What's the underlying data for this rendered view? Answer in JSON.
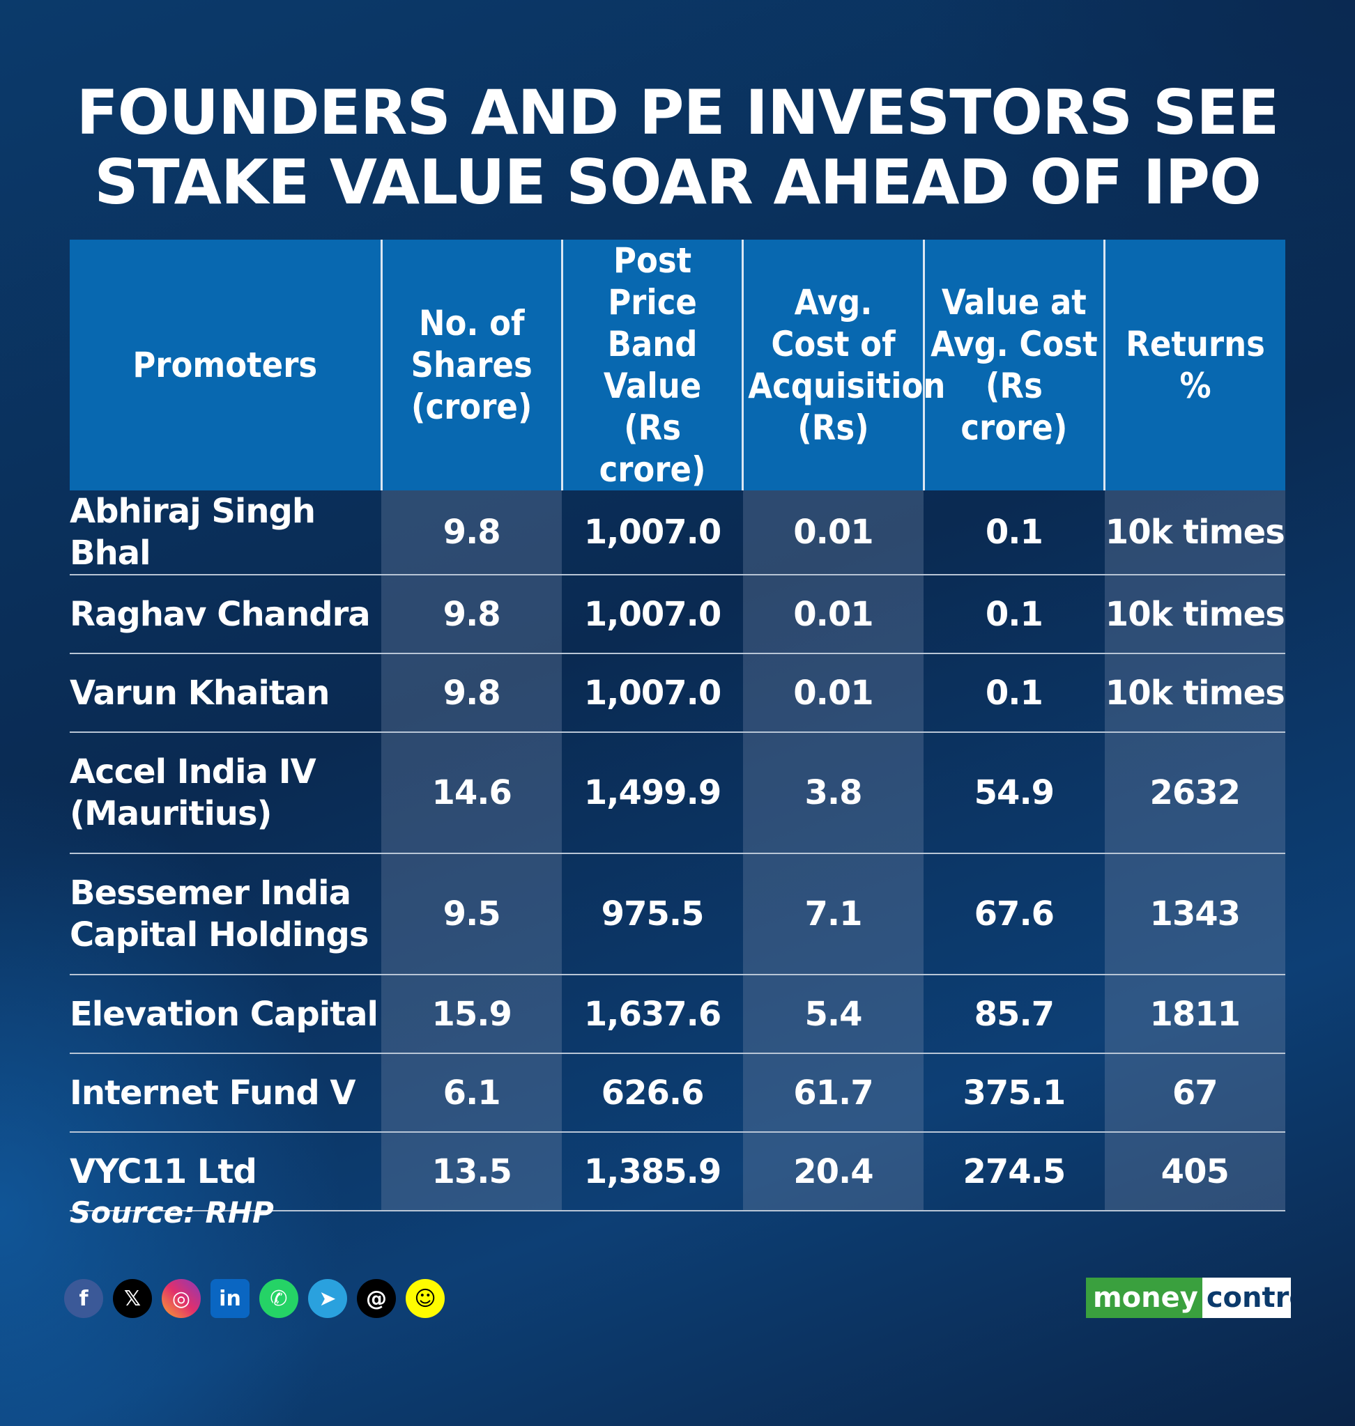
{
  "chart_data": {
    "type": "table",
    "title_lines": [
      "FOUNDERS AND PE INVESTORS SEE",
      "STAKE VALUE SOAR AHEAD OF IPO"
    ],
    "columns": [
      {
        "lines": [
          "Promoters"
        ]
      },
      {
        "lines": [
          "No. of",
          "Shares",
          "(crore)"
        ]
      },
      {
        "lines": [
          "Post",
          "Price Band",
          "Value",
          "(Rs crore)"
        ]
      },
      {
        "lines": [
          "Avg.",
          "Cost of",
          "Acquisition",
          "(Rs)"
        ]
      },
      {
        "lines": [
          "Value at",
          "Avg. Cost",
          "(Rs crore)"
        ]
      },
      {
        "lines": [
          "Returns %"
        ]
      }
    ],
    "rows": [
      {
        "name_lines": [
          "Abhiraj Singh Bhal"
        ],
        "values": [
          "9.8",
          "1,007.0",
          "0.01",
          "0.1",
          "10k times"
        ]
      },
      {
        "name_lines": [
          "Raghav Chandra"
        ],
        "values": [
          "9.8",
          "1,007.0",
          "0.01",
          "0.1",
          "10k times"
        ]
      },
      {
        "name_lines": [
          "Varun Khaitan"
        ],
        "values": [
          "9.8",
          "1,007.0",
          "0.01",
          "0.1",
          "10k times"
        ]
      },
      {
        "name_lines": [
          "Accel India IV",
          "(Mauritius)"
        ],
        "values": [
          "14.6",
          "1,499.9",
          "3.8",
          "54.9",
          "2632"
        ]
      },
      {
        "name_lines": [
          "Bessemer India",
          "Capital Holdings"
        ],
        "values": [
          "9.5",
          "975.5",
          "7.1",
          "67.6",
          "1343"
        ]
      },
      {
        "name_lines": [
          "Elevation Capital"
        ],
        "values": [
          "15.9",
          "1,637.6",
          "5.4",
          "85.7",
          "1811"
        ]
      },
      {
        "name_lines": [
          "Internet Fund V"
        ],
        "values": [
          "6.1",
          "626.6",
          "61.7",
          "375.1",
          "67"
        ]
      },
      {
        "name_lines": [
          "VYC11 Ltd"
        ],
        "values": [
          "13.5",
          "1,385.9",
          "20.4",
          "274.5",
          "405"
        ]
      }
    ],
    "source": "Source: RHP"
  },
  "social": {
    "icons": [
      {
        "name": "facebook-icon",
        "glyph": "f"
      },
      {
        "name": "x-icon",
        "glyph": "𝕏"
      },
      {
        "name": "instagram-icon",
        "glyph": "◎"
      },
      {
        "name": "linkedin-icon",
        "glyph": "in"
      },
      {
        "name": "whatsapp-icon",
        "glyph": "✆"
      },
      {
        "name": "telegram-icon",
        "glyph": "➤"
      },
      {
        "name": "threads-icon",
        "glyph": "@"
      },
      {
        "name": "snapchat-icon",
        "glyph": "☺"
      }
    ]
  },
  "logo": {
    "part1": "money",
    "part2": "control"
  },
  "colors": {
    "header_bg": "#0868b0",
    "logo_green": "#3aa03e"
  }
}
